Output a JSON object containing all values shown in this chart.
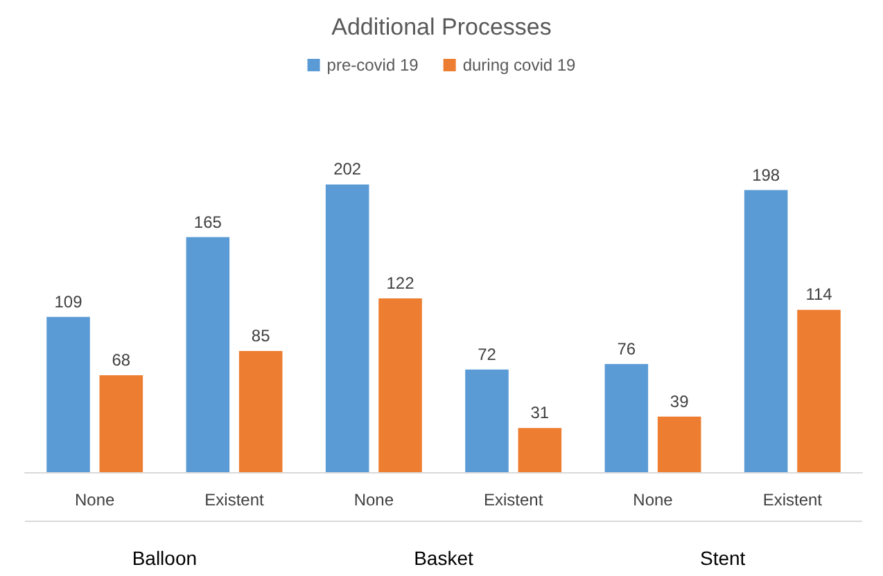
{
  "chart_data": {
    "type": "bar",
    "title": "Additional Processes",
    "categories": [
      "None",
      "Existent",
      "None",
      "Existent",
      "None",
      "Existent"
    ],
    "series": [
      {
        "name": "pre-covid 19",
        "color": "#5b9bd5",
        "values": [
          109,
          165,
          202,
          72,
          76,
          198
        ]
      },
      {
        "name": "during covid 19",
        "color": "#ed7d31",
        "values": [
          68,
          85,
          122,
          31,
          39,
          114
        ]
      }
    ],
    "annotations": [
      "Balloon",
      "Basket",
      "Stent"
    ],
    "data_labels": true,
    "legend": "top"
  }
}
